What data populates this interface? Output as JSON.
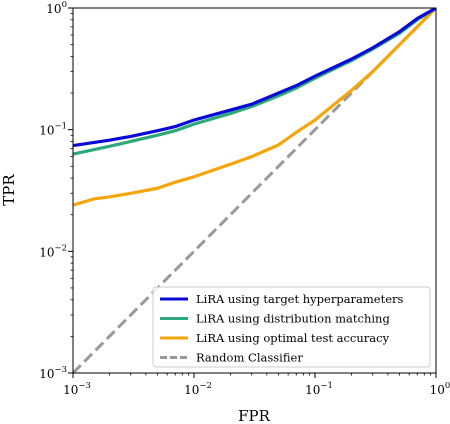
{
  "chart_data": {
    "type": "line",
    "title": "",
    "xlabel": "FPR",
    "ylabel": "TPR",
    "x_scale": "log",
    "y_scale": "log",
    "xlim": [
      0.001,
      1
    ],
    "ylim": [
      0.001,
      1
    ],
    "x_ticks": [
      {
        "value": 0.001,
        "base": "10",
        "exp": "−3"
      },
      {
        "value": 0.01,
        "base": "10",
        "exp": "−2"
      },
      {
        "value": 0.1,
        "base": "10",
        "exp": "−1"
      },
      {
        "value": 1,
        "base": "10",
        "exp": "0"
      }
    ],
    "y_ticks": [
      {
        "value": 0.001,
        "base": "10",
        "exp": "−3"
      },
      {
        "value": 0.01,
        "base": "10",
        "exp": "−2"
      },
      {
        "value": 0.1,
        "base": "10",
        "exp": "−1"
      },
      {
        "value": 1,
        "base": "10",
        "exp": "0"
      }
    ],
    "grid": false,
    "legend_position": "bottom-right",
    "series": [
      {
        "name": "LiRA using target hyperparameters",
        "color": "#0a0ad6",
        "style": "solid",
        "points": [
          [
            0.001,
            0.074
          ],
          [
            0.002,
            0.082
          ],
          [
            0.003,
            0.088
          ],
          [
            0.005,
            0.098
          ],
          [
            0.007,
            0.106
          ],
          [
            0.01,
            0.12
          ],
          [
            0.02,
            0.145
          ],
          [
            0.03,
            0.162
          ],
          [
            0.05,
            0.2
          ],
          [
            0.07,
            0.23
          ],
          [
            0.1,
            0.275
          ],
          [
            0.2,
            0.38
          ],
          [
            0.3,
            0.47
          ],
          [
            0.5,
            0.64
          ],
          [
            0.7,
            0.82
          ],
          [
            1,
            1
          ]
        ]
      },
      {
        "name": "LiRA using distribution matching",
        "color": "#2ca87a",
        "style": "solid",
        "points": [
          [
            0.001,
            0.063
          ],
          [
            0.002,
            0.073
          ],
          [
            0.003,
            0.08
          ],
          [
            0.005,
            0.09
          ],
          [
            0.007,
            0.098
          ],
          [
            0.01,
            0.111
          ],
          [
            0.02,
            0.136
          ],
          [
            0.03,
            0.155
          ],
          [
            0.05,
            0.19
          ],
          [
            0.07,
            0.22
          ],
          [
            0.1,
            0.265
          ],
          [
            0.2,
            0.37
          ],
          [
            0.3,
            0.46
          ],
          [
            0.5,
            0.62
          ],
          [
            0.7,
            0.8
          ],
          [
            1,
            1
          ]
        ]
      },
      {
        "name": "LiRA using optimal test accuracy",
        "color": "#f5a50a",
        "style": "solid",
        "points": [
          [
            0.001,
            0.024
          ],
          [
            0.0015,
            0.027
          ],
          [
            0.002,
            0.028
          ],
          [
            0.003,
            0.03
          ],
          [
            0.005,
            0.033
          ],
          [
            0.007,
            0.037
          ],
          [
            0.01,
            0.041
          ],
          [
            0.02,
            0.052
          ],
          [
            0.03,
            0.06
          ],
          [
            0.05,
            0.075
          ],
          [
            0.07,
            0.095
          ],
          [
            0.1,
            0.12
          ],
          [
            0.2,
            0.21
          ],
          [
            0.3,
            0.3
          ],
          [
            0.5,
            0.5
          ],
          [
            0.7,
            0.7
          ],
          [
            1,
            1
          ]
        ]
      },
      {
        "name": "Random Classifier",
        "color": "#999999",
        "style": "dashed",
        "points": [
          [
            0.001,
            0.001
          ],
          [
            1,
            1
          ]
        ]
      }
    ]
  }
}
